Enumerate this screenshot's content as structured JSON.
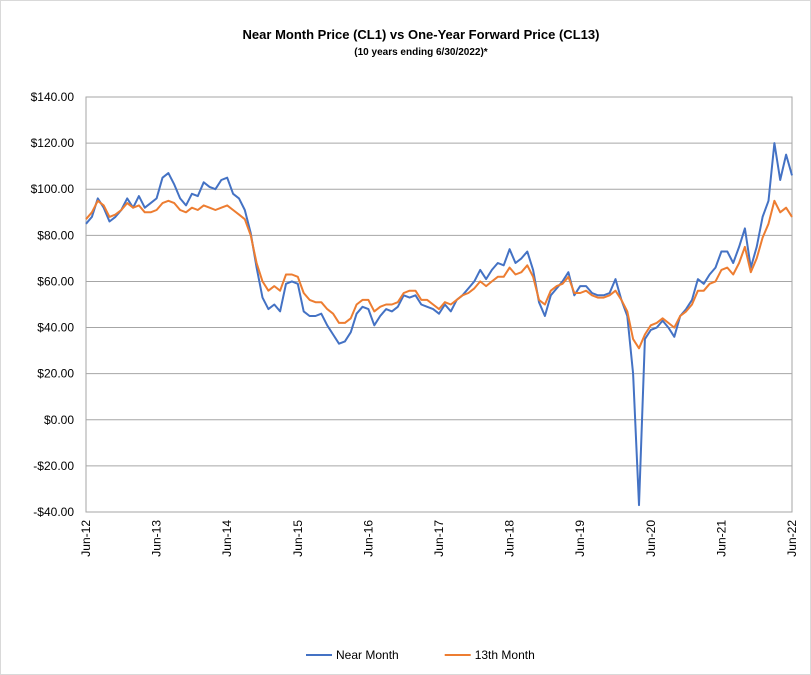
{
  "chart_data": {
    "type": "line",
    "title": "Near Month Price (CL1) vs One-Year Forward Price (CL13)",
    "subtitle": "(10 years ending  6/30/2022)*",
    "categories": [
      "Jun-12",
      null,
      null,
      null,
      null,
      null,
      null,
      null,
      null,
      null,
      null,
      null,
      "Jun-13",
      null,
      null,
      null,
      null,
      null,
      null,
      null,
      null,
      null,
      null,
      null,
      "Jun-14",
      null,
      null,
      null,
      null,
      null,
      null,
      null,
      null,
      null,
      null,
      null,
      "Jun-15",
      null,
      null,
      null,
      null,
      null,
      null,
      null,
      null,
      null,
      null,
      null,
      "Jun-16",
      null,
      null,
      null,
      null,
      null,
      null,
      null,
      null,
      null,
      null,
      null,
      "Jun-17",
      null,
      null,
      null,
      null,
      null,
      null,
      null,
      null,
      null,
      null,
      null,
      "Jun-18",
      null,
      null,
      null,
      null,
      null,
      null,
      null,
      null,
      null,
      null,
      null,
      "Jun-19",
      null,
      null,
      null,
      null,
      null,
      null,
      null,
      null,
      null,
      null,
      null,
      "Jun-20",
      null,
      null,
      null,
      null,
      null,
      null,
      null,
      null,
      null,
      null,
      null,
      "Jun-21",
      null,
      null,
      null,
      null,
      null,
      null,
      null,
      null,
      null,
      null,
      null,
      "Jun-22"
    ],
    "series": [
      {
        "name": "Near Month",
        "color": "#4472c4",
        "values": [
          85,
          88,
          96,
          92,
          86,
          88,
          91,
          96,
          92,
          97,
          92,
          94,
          96,
          105,
          107,
          102,
          96,
          93,
          98,
          97,
          103,
          101,
          100,
          104,
          105,
          98,
          96,
          91,
          81,
          66,
          53,
          48,
          50,
          47,
          59,
          60,
          59,
          47,
          45,
          45,
          46,
          41,
          37,
          33,
          34,
          38,
          46,
          49,
          48,
          41,
          45,
          48,
          47,
          49,
          54,
          53,
          54,
          50,
          49,
          48,
          46,
          50,
          47,
          52,
          54,
          57,
          60,
          65,
          61,
          65,
          68,
          67,
          74,
          68,
          70,
          73,
          65,
          51,
          45,
          54,
          57,
          60,
          64,
          54,
          58,
          58,
          55,
          54,
          54,
          55,
          61,
          52,
          45,
          20,
          -37,
          35,
          39,
          40,
          43,
          40,
          36,
          45,
          48,
          52,
          61,
          59,
          63,
          66,
          73,
          73,
          68,
          75,
          83,
          66,
          75,
          88,
          95,
          120,
          104,
          115,
          106
        ]
      },
      {
        "name": "13th Month",
        "color": "#ed7d31",
        "values": [
          87,
          90,
          95,
          93,
          88,
          89,
          91,
          94,
          92,
          93,
          90,
          90,
          91,
          94,
          95,
          94,
          91,
          90,
          92,
          91,
          93,
          92,
          91,
          92,
          93,
          91,
          89,
          87,
          80,
          68,
          60,
          56,
          58,
          56,
          63,
          63,
          62,
          55,
          52,
          51,
          51,
          48,
          46,
          42,
          42,
          44,
          50,
          52,
          52,
          47,
          49,
          50,
          50,
          51,
          55,
          56,
          56,
          52,
          52,
          50,
          48,
          51,
          50,
          52,
          54,
          55,
          57,
          60,
          58,
          60,
          62,
          62,
          66,
          63,
          64,
          67,
          62,
          52,
          50,
          56,
          58,
          59,
          62,
          55,
          55,
          56,
          54,
          53,
          53,
          54,
          56,
          52,
          47,
          35,
          31,
          37,
          41,
          42,
          44,
          42,
          40,
          45,
          47,
          50,
          56,
          56,
          59,
          60,
          65,
          66,
          63,
          68,
          75,
          64,
          70,
          79,
          85,
          95,
          90,
          92,
          88
        ]
      }
    ],
    "ylim": [
      -40,
      140
    ],
    "yticks": [
      {
        "value": -40,
        "label": "-$40.00"
      },
      {
        "value": -20,
        "label": "-$20.00"
      },
      {
        "value": 0,
        "label": "$0.00"
      },
      {
        "value": 20,
        "label": "$20.00"
      },
      {
        "value": 40,
        "label": "$40.00"
      },
      {
        "value": 60,
        "label": "$60.00"
      },
      {
        "value": 80,
        "label": "$80.00"
      },
      {
        "value": 100,
        "label": "$100.00"
      },
      {
        "value": 120,
        "label": "$120.00"
      },
      {
        "value": 140,
        "label": "$140.00"
      }
    ],
    "grid": true,
    "legend": "bottom"
  }
}
